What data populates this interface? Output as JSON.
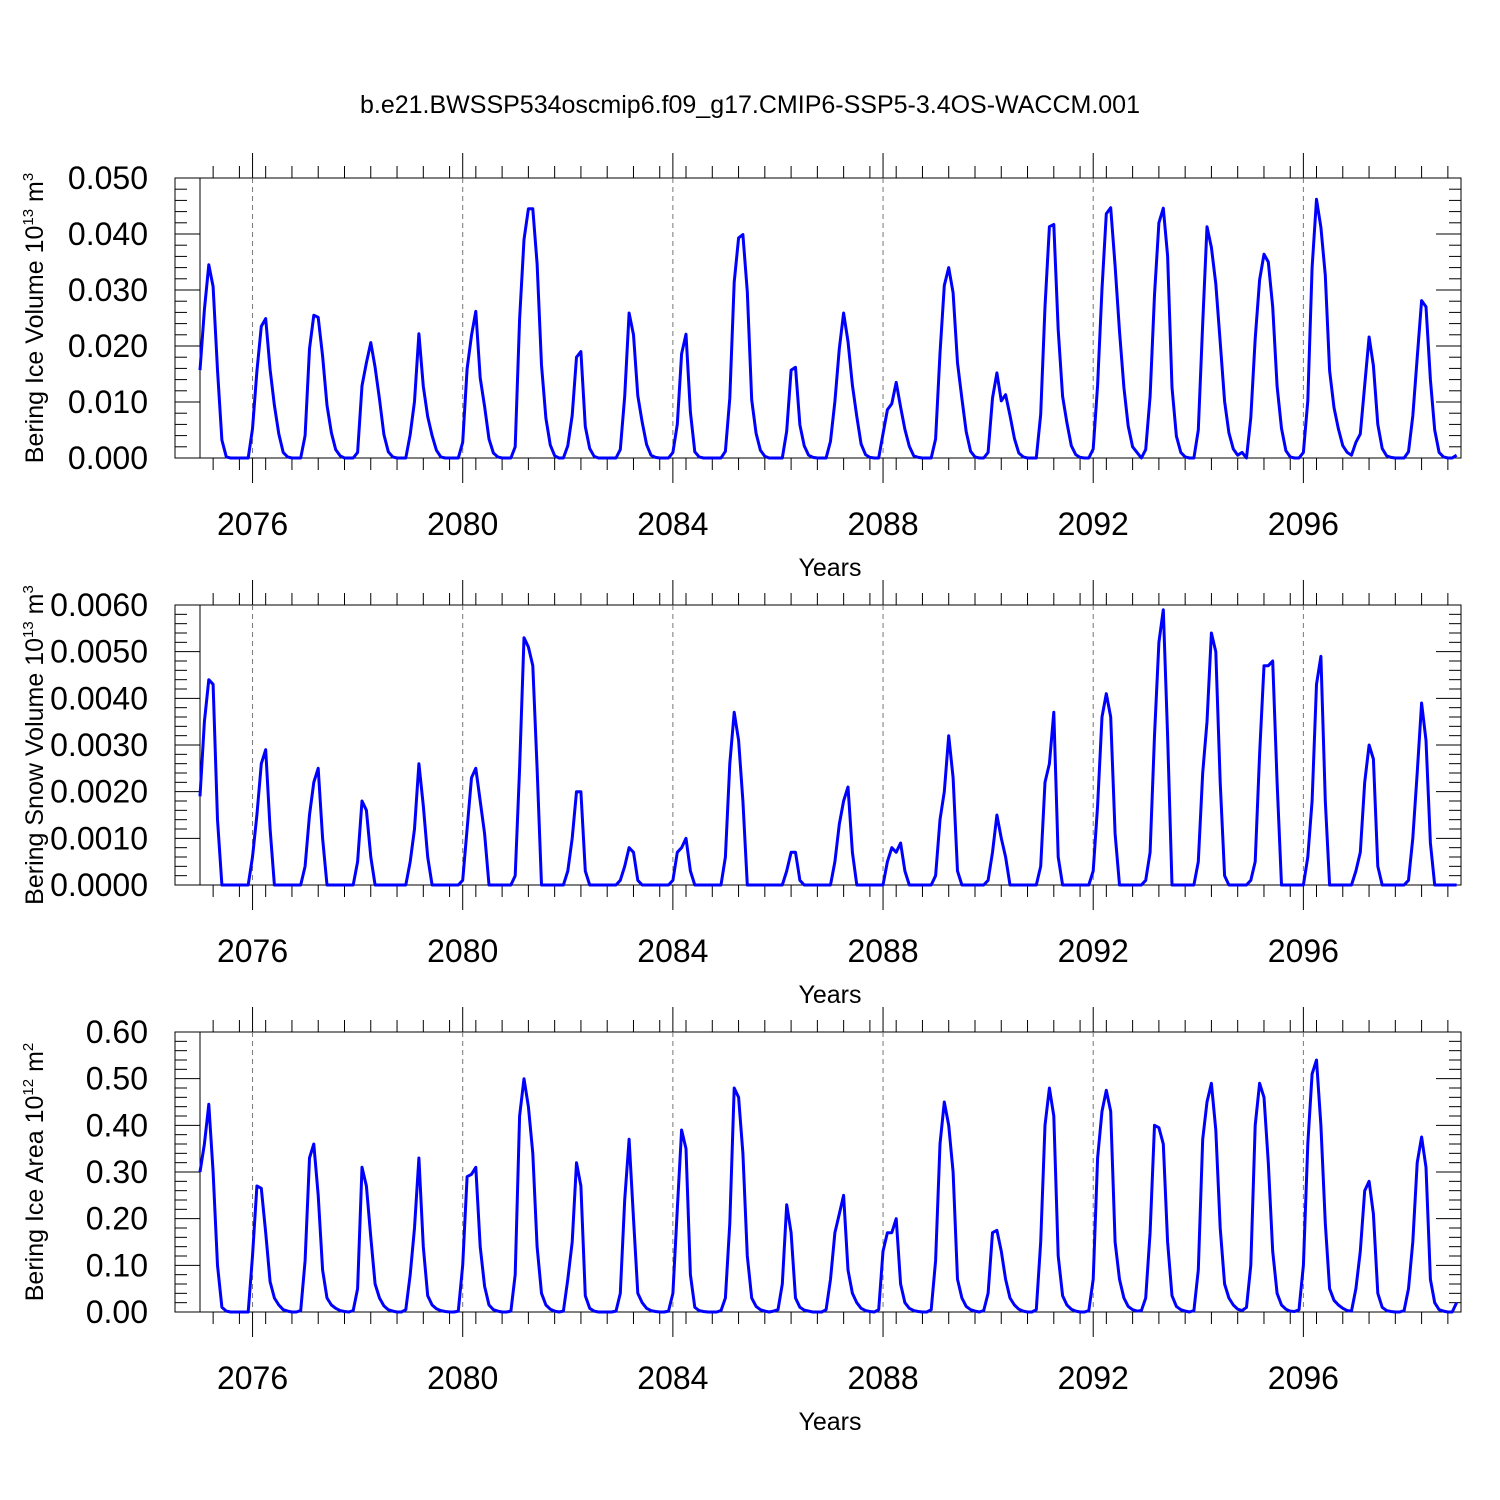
{
  "title": "b.e21.BWSSP534oscmip6.f09_g17.CMIP6-SSP5-3.4OS-WACCM.001",
  "colors": {
    "line": "#0000ff",
    "axis": "#000000",
    "grid": "#777777"
  },
  "chart_data": [
    {
      "type": "line",
      "ylabel": {
        "main": "Bering Ice Volume 10",
        "exp": "13",
        "unit": " m",
        "unit_exp": "3"
      },
      "xlabel": "Years",
      "xlim": [
        2075.0,
        2099.0
      ],
      "ylim": [
        0.0,
        0.05
      ],
      "xticks": [
        2076,
        2080,
        2084,
        2088,
        2092,
        2096
      ],
      "xtick_labels": [
        "2076",
        "2080",
        "2084",
        "2088",
        "2092",
        "2096"
      ],
      "yticks": [
        0.0,
        0.01,
        0.02,
        0.03,
        0.04,
        0.05
      ],
      "ytick_labels": [
        "0.000",
        "0.010",
        "0.020",
        "0.030",
        "0.040",
        "0.050"
      ],
      "grid": "vertical dashed at major x ticks",
      "series": [
        {
          "x_start": 2075.0,
          "x_step": 0.0833333,
          "values": [
            0.0157,
            0.0265,
            0.0345,
            0.0306,
            0.0157,
            0.0032,
            0.0002,
            0.0,
            0.0,
            0.0,
            0.0,
            0.0,
            0.0052,
            0.0155,
            0.0235,
            0.0249,
            0.0158,
            0.0094,
            0.0043,
            0.001,
            0.0002,
            0.0,
            0.0,
            0.0,
            0.004,
            0.0195,
            0.0255,
            0.0251,
            0.0182,
            0.0094,
            0.0045,
            0.0015,
            0.0004,
            0.0,
            0.0,
            0.0,
            0.001,
            0.0129,
            0.017,
            0.0206,
            0.0162,
            0.0105,
            0.0042,
            0.0011,
            0.0002,
            0.0,
            0.0,
            0.0,
            0.0042,
            0.0101,
            0.0222,
            0.0128,
            0.0074,
            0.004,
            0.0014,
            0.0002,
            0.0,
            0.0,
            0.0,
            0.0,
            0.0028,
            0.0159,
            0.0219,
            0.0262,
            0.0143,
            0.0092,
            0.0034,
            0.0009,
            0.0002,
            0.0,
            0.0,
            0.0,
            0.002,
            0.0248,
            0.039,
            0.0445,
            0.0445,
            0.0347,
            0.0166,
            0.0071,
            0.0023,
            0.0004,
            0.0,
            0.0,
            0.0022,
            0.0076,
            0.018,
            0.019,
            0.0056,
            0.0017,
            0.0003,
            0.0,
            0.0,
            0.0,
            0.0,
            0.0,
            0.0015,
            0.011,
            0.0259,
            0.022,
            0.0111,
            0.0064,
            0.0024,
            0.0005,
            0.0001,
            0.0,
            0.0,
            0.0,
            0.001,
            0.006,
            0.0186,
            0.0221,
            0.0082,
            0.0011,
            0.0002,
            0.0,
            0.0,
            0.0,
            0.0,
            0.0,
            0.0012,
            0.0107,
            0.0314,
            0.0393,
            0.0399,
            0.0297,
            0.0104,
            0.0044,
            0.0014,
            0.0003,
            0.0,
            0.0,
            0.0,
            0.0,
            0.0048,
            0.0157,
            0.0162,
            0.0059,
            0.0022,
            0.0005,
            0.0001,
            0.0,
            0.0,
            0.0,
            0.003,
            0.0101,
            0.0195,
            0.0259,
            0.0208,
            0.013,
            0.0074,
            0.0025,
            0.0006,
            0.0001,
            0.0,
            0.0,
            0.0043,
            0.0086,
            0.0097,
            0.0135,
            0.0091,
            0.0051,
            0.0021,
            0.0004,
            0.0001,
            0.0,
            0.0,
            0.0,
            0.0034,
            0.0187,
            0.0308,
            0.034,
            0.0295,
            0.017,
            0.0106,
            0.0047,
            0.0012,
            0.0002,
            0.0,
            0.0,
            0.001,
            0.0107,
            0.0152,
            0.0102,
            0.0113,
            0.0076,
            0.0035,
            0.0009,
            0.0002,
            0.0,
            0.0,
            0.0,
            0.0078,
            0.027,
            0.0413,
            0.0417,
            0.0229,
            0.011,
            0.0063,
            0.0022,
            0.0006,
            0.0001,
            0.0,
            0.0,
            0.0016,
            0.013,
            0.0302,
            0.0436,
            0.0447,
            0.0343,
            0.0226,
            0.0126,
            0.0057,
            0.002,
            0.001,
            0.0,
            0.0015,
            0.011,
            0.0291,
            0.042,
            0.0446,
            0.0361,
            0.0126,
            0.0039,
            0.001,
            0.0002,
            0.0,
            0.0,
            0.005,
            0.024,
            0.0413,
            0.0376,
            0.0311,
            0.0207,
            0.0101,
            0.0045,
            0.0016,
            0.0005,
            0.001,
            0.0,
            0.0072,
            0.0213,
            0.0318,
            0.0364,
            0.035,
            0.027,
            0.0128,
            0.0053,
            0.0013,
            0.0002,
            0.0,
            0.0,
            0.001,
            0.0102,
            0.034,
            0.0462,
            0.0412,
            0.0326,
            0.0156,
            0.009,
            0.0052,
            0.0022,
            0.001,
            0.0005,
            0.0028,
            0.0043,
            0.013,
            0.0216,
            0.0165,
            0.006,
            0.0017,
            0.0004,
            0.0001,
            0.0,
            0.0,
            0.0,
            0.0011,
            0.0075,
            0.0179,
            0.0281,
            0.027,
            0.014,
            0.005,
            0.001,
            0.0002,
            0.0,
            0.0,
            0.0005
          ]
        }
      ]
    },
    {
      "type": "line",
      "ylabel": {
        "main": "Bering Snow Volume 10",
        "exp": "13",
        "unit": " m",
        "unit_exp": "3"
      },
      "xlabel": "Years",
      "xlim": [
        2075.0,
        2099.0
      ],
      "ylim": [
        0.0,
        0.006
      ],
      "xticks": [
        2076,
        2080,
        2084,
        2088,
        2092,
        2096
      ],
      "xtick_labels": [
        "2076",
        "2080",
        "2084",
        "2088",
        "2092",
        "2096"
      ],
      "yticks": [
        0.0,
        0.001,
        0.002,
        0.003,
        0.004,
        0.005,
        0.006
      ],
      "ytick_labels": [
        "0.0000",
        "0.0010",
        "0.0020",
        "0.0030",
        "0.0040",
        "0.0050",
        "0.0060"
      ],
      "grid": "vertical dashed at major x ticks",
      "series": [
        {
          "x_start": 2075.0,
          "x_step": 0.0833333,
          "values": [
            0.0019,
            0.0035,
            0.0044,
            0.0043,
            0.0014,
            0.0,
            0.0,
            0.0,
            0.0,
            0.0,
            0.0,
            0.0,
            0.0006,
            0.0015,
            0.0026,
            0.0029,
            0.0012,
            0.0,
            0.0,
            0.0,
            0.0,
            0.0,
            0.0,
            0.0,
            0.0004,
            0.0015,
            0.0022,
            0.0025,
            0.001,
            0.0,
            0.0,
            0.0,
            0.0,
            0.0,
            0.0,
            0.0,
            0.0005,
            0.0018,
            0.0016,
            0.0006,
            0.0,
            0.0,
            0.0,
            0.0,
            0.0,
            0.0,
            0.0,
            0.0,
            0.0005,
            0.0012,
            0.0026,
            0.0017,
            0.0006,
            0.0,
            0.0,
            0.0,
            0.0,
            0.0,
            0.0,
            0.0,
            0.0001,
            0.0012,
            0.0023,
            0.0025,
            0.0018,
            0.0011,
            0.0,
            0.0,
            0.0,
            0.0,
            0.0,
            0.0,
            0.0002,
            0.0025,
            0.0053,
            0.0051,
            0.0047,
            0.0025,
            0.0,
            0.0,
            0.0,
            0.0,
            0.0,
            0.0,
            0.0003,
            0.001,
            0.002,
            0.002,
            0.0003,
            0.0,
            0.0,
            0.0,
            0.0,
            0.0,
            0.0,
            0.0,
            0.0001,
            0.0004,
            0.0008,
            0.0007,
            0.0001,
            0.0,
            0.0,
            0.0,
            0.0,
            0.0,
            0.0,
            0.0,
            0.0001,
            0.0007,
            0.0008,
            0.001,
            0.0003,
            0.0,
            0.0,
            0.0,
            0.0,
            0.0,
            0.0,
            0.0,
            0.0006,
            0.0026,
            0.0037,
            0.0031,
            0.0018,
            0.0,
            0.0,
            0.0,
            0.0,
            0.0,
            0.0,
            0.0,
            0.0,
            0.0,
            0.0003,
            0.0007,
            0.0007,
            0.0001,
            0.0,
            0.0,
            0.0,
            0.0,
            0.0,
            0.0,
            0.0,
            0.0005,
            0.0013,
            0.0018,
            0.0021,
            0.0007,
            0.0,
            0.0,
            0.0,
            0.0,
            0.0,
            0.0,
            0.0,
            0.0005,
            0.0008,
            0.0007,
            0.0009,
            0.0003,
            0.0,
            0.0,
            0.0,
            0.0,
            0.0,
            0.0,
            0.0002,
            0.0014,
            0.002,
            0.0032,
            0.0023,
            0.0003,
            0.0,
            0.0,
            0.0,
            0.0,
            0.0,
            0.0,
            0.0001,
            0.0007,
            0.0015,
            0.001,
            0.0006,
            0.0,
            0.0,
            0.0,
            0.0,
            0.0,
            0.0,
            0.0,
            0.0004,
            0.0022,
            0.0026,
            0.0037,
            0.0006,
            0.0,
            0.0,
            0.0,
            0.0,
            0.0,
            0.0,
            0.0,
            0.0003,
            0.0017,
            0.0036,
            0.0041,
            0.0036,
            0.0011,
            0.0,
            0.0,
            0.0,
            0.0,
            0.0,
            0.0,
            0.0001,
            0.0007,
            0.0032,
            0.0052,
            0.0059,
            0.0032,
            0.0,
            0.0,
            0.0,
            0.0,
            0.0,
            0.0,
            0.0005,
            0.0024,
            0.0035,
            0.0054,
            0.005,
            0.0022,
            0.0002,
            0.0,
            0.0,
            0.0,
            0.0,
            0.0,
            0.0001,
            0.0005,
            0.0028,
            0.0047,
            0.0047,
            0.0048,
            0.0022,
            0.0,
            0.0,
            0.0,
            0.0,
            0.0,
            0.0,
            0.0006,
            0.0018,
            0.0043,
            0.0049,
            0.0018,
            0.0,
            0.0,
            0.0,
            0.0,
            0.0,
            0.0,
            0.0003,
            0.0007,
            0.0022,
            0.003,
            0.0027,
            0.0004,
            0.0,
            0.0,
            0.0,
            0.0,
            0.0,
            0.0,
            0.0001,
            0.001,
            0.0024,
            0.0039,
            0.0031,
            0.0009,
            0.0,
            0.0,
            0.0,
            0.0,
            0.0,
            0.0
          ]
        }
      ]
    },
    {
      "type": "line",
      "ylabel": {
        "main": "Bering Ice Area 10",
        "exp": "12",
        "unit": " m",
        "unit_exp": "2"
      },
      "xlabel": "Years",
      "xlim": [
        2075.0,
        2099.0
      ],
      "ylim": [
        0.0,
        0.6
      ],
      "xticks": [
        2076,
        2080,
        2084,
        2088,
        2092,
        2096
      ],
      "xtick_labels": [
        "2076",
        "2080",
        "2084",
        "2088",
        "2092",
        "2096"
      ],
      "yticks": [
        0.0,
        0.1,
        0.2,
        0.3,
        0.4,
        0.5,
        0.6
      ],
      "ytick_labels": [
        "0.00",
        "0.10",
        "0.20",
        "0.30",
        "0.40",
        "0.50",
        "0.60"
      ],
      "grid": "vertical dashed at major x ticks",
      "series": [
        {
          "x_start": 2075.0,
          "x_step": 0.0833333,
          "values": [
            0.3,
            0.36,
            0.445,
            0.3,
            0.1,
            0.01,
            0.002,
            0.0,
            0.0,
            0.0,
            0.0,
            0.0,
            0.12,
            0.27,
            0.265,
            0.17,
            0.065,
            0.03,
            0.015,
            0.005,
            0.002,
            0.0,
            0.0,
            0.003,
            0.11,
            0.33,
            0.36,
            0.25,
            0.09,
            0.03,
            0.015,
            0.008,
            0.003,
            0.001,
            0.0,
            0.003,
            0.05,
            0.31,
            0.27,
            0.16,
            0.06,
            0.03,
            0.013,
            0.005,
            0.002,
            0.0,
            0.0,
            0.005,
            0.08,
            0.18,
            0.33,
            0.14,
            0.035,
            0.015,
            0.007,
            0.003,
            0.001,
            0.0,
            0.0,
            0.002,
            0.1,
            0.29,
            0.295,
            0.31,
            0.14,
            0.055,
            0.015,
            0.005,
            0.002,
            0.0,
            0.0,
            0.002,
            0.08,
            0.42,
            0.5,
            0.44,
            0.34,
            0.14,
            0.04,
            0.015,
            0.006,
            0.002,
            0.0,
            0.002,
            0.07,
            0.15,
            0.32,
            0.27,
            0.035,
            0.008,
            0.002,
            0.0,
            0.0,
            0.0,
            0.0,
            0.002,
            0.04,
            0.24,
            0.37,
            0.2,
            0.04,
            0.02,
            0.008,
            0.003,
            0.001,
            0.0,
            0.0,
            0.002,
            0.04,
            0.22,
            0.39,
            0.35,
            0.08,
            0.01,
            0.003,
            0.001,
            0.0,
            0.0,
            0.0,
            0.003,
            0.03,
            0.19,
            0.48,
            0.46,
            0.34,
            0.12,
            0.03,
            0.012,
            0.005,
            0.002,
            0.0,
            0.002,
            0.005,
            0.06,
            0.23,
            0.17,
            0.03,
            0.01,
            0.004,
            0.002,
            0.0,
            0.0,
            0.0,
            0.005,
            0.07,
            0.17,
            0.21,
            0.25,
            0.09,
            0.04,
            0.02,
            0.008,
            0.003,
            0.001,
            0.0,
            0.005,
            0.13,
            0.17,
            0.17,
            0.2,
            0.06,
            0.02,
            0.008,
            0.003,
            0.001,
            0.0,
            0.0,
            0.005,
            0.11,
            0.36,
            0.45,
            0.4,
            0.3,
            0.07,
            0.03,
            0.012,
            0.005,
            0.002,
            0.0,
            0.003,
            0.04,
            0.17,
            0.175,
            0.13,
            0.07,
            0.03,
            0.015,
            0.006,
            0.002,
            0.0,
            0.0,
            0.005,
            0.15,
            0.4,
            0.48,
            0.42,
            0.12,
            0.035,
            0.015,
            0.006,
            0.002,
            0.0,
            0.0,
            0.003,
            0.07,
            0.33,
            0.43,
            0.475,
            0.43,
            0.15,
            0.07,
            0.03,
            0.012,
            0.005,
            0.002,
            0.003,
            0.03,
            0.17,
            0.4,
            0.395,
            0.36,
            0.15,
            0.035,
            0.012,
            0.005,
            0.002,
            0.0,
            0.003,
            0.09,
            0.37,
            0.45,
            0.49,
            0.39,
            0.18,
            0.06,
            0.03,
            0.015,
            0.006,
            0.003,
            0.01,
            0.1,
            0.4,
            0.49,
            0.46,
            0.32,
            0.13,
            0.04,
            0.015,
            0.006,
            0.002,
            0.001,
            0.005,
            0.1,
            0.36,
            0.51,
            0.54,
            0.4,
            0.19,
            0.05,
            0.025,
            0.015,
            0.008,
            0.003,
            0.002,
            0.05,
            0.13,
            0.26,
            0.28,
            0.21,
            0.04,
            0.01,
            0.003,
            0.001,
            0.0,
            0.0,
            0.003,
            0.05,
            0.15,
            0.32,
            0.375,
            0.31,
            0.07,
            0.02,
            0.005,
            0.002,
            0.0,
            0.0,
            0.02
          ]
        }
      ]
    }
  ]
}
